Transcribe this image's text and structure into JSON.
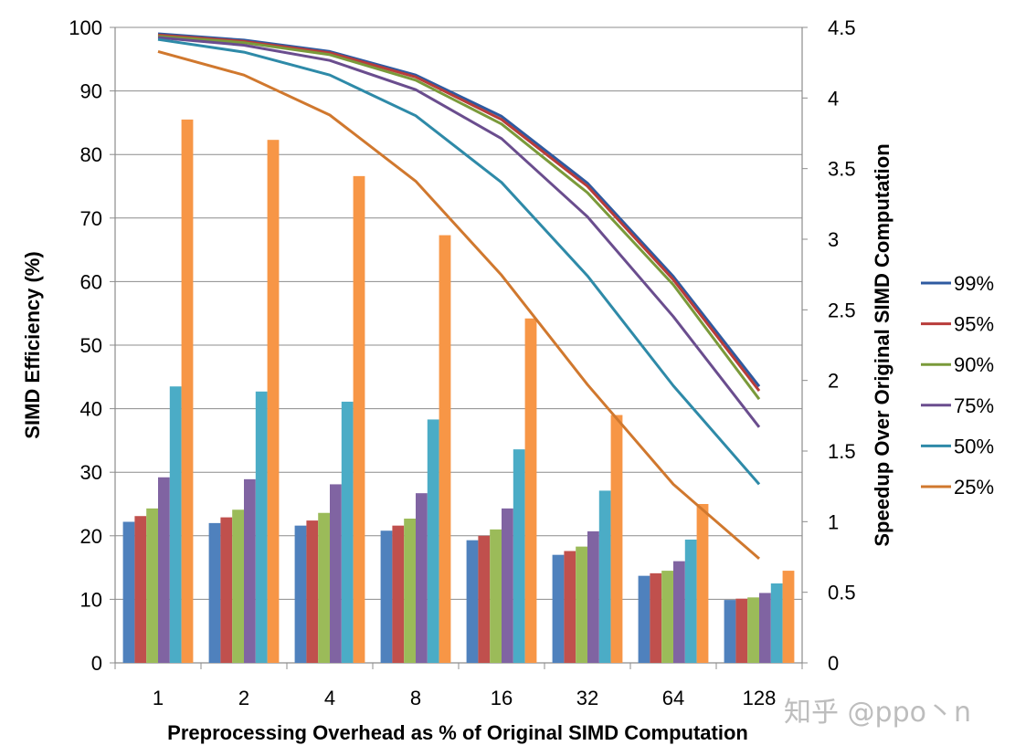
{
  "chart_data": {
    "type": "bar+line",
    "categories": [
      "1",
      "2",
      "4",
      "8",
      "16",
      "32",
      "64",
      "128"
    ],
    "xlabel": "Preprocessing Overhead as % of Original SIMD Computation",
    "ylabel_left": "SIMD Efficiency (%)",
    "ylabel_right": "Speedup Over Original SIMD Computation",
    "ylim_left": [
      0,
      100
    ],
    "ylim_right": [
      0,
      4.5
    ],
    "yticks_left": [
      "0",
      "10",
      "20",
      "30",
      "40",
      "50",
      "60",
      "70",
      "80",
      "90",
      "100"
    ],
    "yticks_right": [
      "0",
      "0.5",
      "1",
      "1.5",
      "2",
      "2.5",
      "3",
      "3.5",
      "4",
      "4.5"
    ],
    "grid": true,
    "legend_position": "right",
    "series": [
      {
        "name": "99%",
        "color": "#2e5aa0",
        "bar_color": "#4f81bd",
        "bars": [
          22.2,
          22.0,
          21.6,
          20.8,
          19.3,
          17.0,
          13.7,
          9.9
        ],
        "line": [
          99.0,
          98.0,
          96.2,
          92.5,
          86.0,
          75.5,
          60.8,
          43.5
        ]
      },
      {
        "name": "95%",
        "color": "#b83c3a",
        "bar_color": "#c0504d",
        "bars": [
          23.1,
          22.9,
          22.4,
          21.6,
          20.0,
          17.6,
          14.1,
          10.1
        ],
        "line": [
          98.8,
          97.8,
          96.0,
          92.2,
          85.5,
          75.0,
          60.3,
          42.8
        ]
      },
      {
        "name": "90%",
        "color": "#7a9a3a",
        "bar_color": "#9bbb59",
        "bars": [
          24.3,
          24.1,
          23.6,
          22.7,
          21.0,
          18.3,
          14.5,
          10.3
        ],
        "line": [
          98.6,
          97.6,
          95.7,
          91.7,
          84.8,
          74.0,
          59.5,
          41.5
        ]
      },
      {
        "name": "75%",
        "color": "#6a4d8e",
        "bar_color": "#8064a2",
        "bars": [
          29.2,
          28.9,
          28.1,
          26.7,
          24.3,
          20.7,
          16.0,
          11.0
        ],
        "line": [
          98.4,
          97.2,
          94.8,
          90.2,
          82.5,
          70.2,
          54.5,
          37.1
        ]
      },
      {
        "name": "50%",
        "color": "#2e8aa8",
        "bar_color": "#4bacc6",
        "bars": [
          43.5,
          42.7,
          41.1,
          38.3,
          33.6,
          27.1,
          19.4,
          12.5
        ],
        "line": [
          98.1,
          96.1,
          92.5,
          86.1,
          75.6,
          60.9,
          43.6,
          28.1
        ]
      },
      {
        "name": "25%",
        "color": "#d0782e",
        "bar_color": "#f79646",
        "bars": [
          85.5,
          82.3,
          76.6,
          67.3,
          54.2,
          39.0,
          25.0,
          14.5
        ],
        "line": [
          96.2,
          92.5,
          86.2,
          75.8,
          61.0,
          43.8,
          28.1,
          16.4
        ]
      }
    ]
  },
  "watermark": "知乎 @ppo丶n"
}
